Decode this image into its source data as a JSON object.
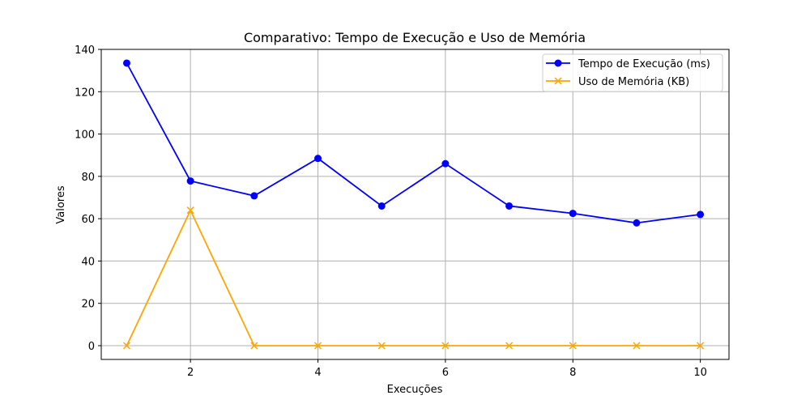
{
  "chart_data": {
    "type": "line",
    "title": "Comparativo: Tempo de Execução e Uso de Memória",
    "xlabel": "Execuções",
    "ylabel": "Valores",
    "x": [
      1,
      2,
      3,
      4,
      5,
      6,
      7,
      8,
      9,
      10
    ],
    "xlim": [
      0.6,
      10.45
    ],
    "ylim": [
      -6.5,
      140
    ],
    "xticks": [
      2,
      4,
      6,
      8,
      10
    ],
    "yticks": [
      0,
      20,
      40,
      60,
      80,
      100,
      120,
      140
    ],
    "grid": true,
    "legend_position": "top-right",
    "series": [
      {
        "name": "Tempo de Execução (ms)",
        "color": "#0000ff",
        "marker": "circle",
        "values": [
          133.5,
          77.8,
          70.8,
          88.5,
          66.0,
          86.0,
          66.0,
          62.5,
          58.0,
          62.0
        ]
      },
      {
        "name": "Uso de Memória (KB)",
        "color": "#ffa500",
        "marker": "x",
        "values": [
          0,
          64,
          0,
          0,
          0,
          0,
          0,
          0,
          0,
          0
        ]
      }
    ]
  }
}
